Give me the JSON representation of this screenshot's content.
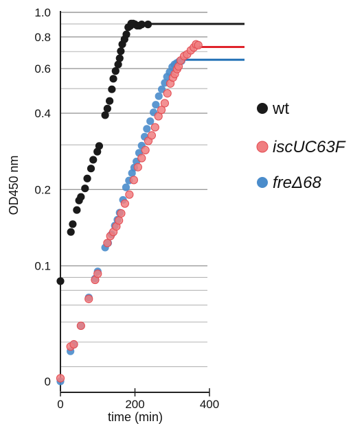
{
  "chart_data": {
    "type": "scatter",
    "title": "",
    "xlabel": "time (min)",
    "ylabel": "OD450 nm",
    "scale": "log",
    "xlim": [
      0,
      400
    ],
    "x_ticks": [
      "0",
      "200",
      "400"
    ],
    "y_ticks": [
      "0",
      "0.1",
      "0.2",
      "0.4",
      "0.6",
      "0.8",
      "1.0"
    ],
    "y_tick_values": [
      0.035,
      0.1,
      0.2,
      0.4,
      0.6,
      0.8,
      1.0
    ],
    "grid_y_values": [
      0.1,
      0.2,
      0.3,
      0.4,
      0.5,
      0.6,
      0.7,
      0.8,
      0.9,
      1.0,
      0.04,
      0.05,
      0.06,
      0.07,
      0.08,
      0.09
    ],
    "legend_position": "right",
    "series": [
      {
        "name": "wt",
        "color": "#1a1a1a",
        "plateau": 0.9,
        "plateau_from": 230,
        "points": [
          [
            0,
            0.087
          ],
          [
            28,
            0.136
          ],
          [
            33,
            0.146
          ],
          [
            44,
            0.166
          ],
          [
            50,
            0.181
          ],
          [
            55,
            0.187
          ],
          [
            66,
            0.202
          ],
          [
            72,
            0.221
          ],
          [
            82,
            0.242
          ],
          [
            88,
            0.262
          ],
          [
            99,
            0.282
          ],
          [
            104,
            0.297
          ],
          [
            120,
            0.393
          ],
          [
            126,
            0.417
          ],
          [
            132,
            0.447
          ],
          [
            138,
            0.497
          ],
          [
            142,
            0.547
          ],
          [
            148,
            0.587
          ],
          [
            155,
            0.623
          ],
          [
            159,
            0.659
          ],
          [
            162,
            0.703
          ],
          [
            166,
            0.748
          ],
          [
            172,
            0.783
          ],
          [
            177,
            0.819
          ],
          [
            182,
            0.873
          ],
          [
            187,
            0.883
          ],
          [
            190,
            0.903
          ],
          [
            195,
            0.903
          ],
          [
            200,
            0.897
          ],
          [
            206,
            0.886
          ],
          [
            212,
            0.886
          ],
          [
            218,
            0.896
          ],
          [
            235,
            0.896
          ]
        ]
      },
      {
        "name": "iscUC63F",
        "color": "#f07e80",
        "plateau": 0.73,
        "plateau_from": 365,
        "points": [
          [
            0,
            0.036
          ],
          [
            27,
            0.048
          ],
          [
            36,
            0.049
          ],
          [
            55,
            0.058
          ],
          [
            76,
            0.074
          ],
          [
            93,
            0.088
          ],
          [
            100,
            0.093
          ],
          [
            126,
            0.123
          ],
          [
            134,
            0.131
          ],
          [
            142,
            0.136
          ],
          [
            150,
            0.143
          ],
          [
            157,
            0.151
          ],
          [
            163,
            0.161
          ],
          [
            173,
            0.176
          ],
          [
            185,
            0.191
          ],
          [
            197,
            0.218
          ],
          [
            208,
            0.245
          ],
          [
            218,
            0.266
          ],
          [
            228,
            0.286
          ],
          [
            236,
            0.311
          ],
          [
            245,
            0.327
          ],
          [
            254,
            0.352
          ],
          [
            263,
            0.389
          ],
          [
            271,
            0.412
          ],
          [
            280,
            0.438
          ],
          [
            287,
            0.479
          ],
          [
            295,
            0.524
          ],
          [
            302,
            0.553
          ],
          [
            307,
            0.571
          ],
          [
            313,
            0.597
          ],
          [
            317,
            0.612
          ],
          [
            323,
            0.646
          ],
          [
            332,
            0.672
          ],
          [
            340,
            0.683
          ],
          [
            350,
            0.708
          ],
          [
            358,
            0.727
          ],
          [
            364,
            0.748
          ],
          [
            370,
            0.742
          ]
        ]
      },
      {
        "name": "freΔ68",
        "color": "#4a8ccb",
        "plateau": 0.65,
        "plateau_from": 320,
        "points": [
          [
            0,
            0.035
          ],
          [
            27,
            0.046
          ],
          [
            36,
            0.049
          ],
          [
            55,
            0.058
          ],
          [
            76,
            0.075
          ],
          [
            93,
            0.089
          ],
          [
            100,
            0.095
          ],
          [
            120,
            0.118
          ],
          [
            128,
            0.123
          ],
          [
            137,
            0.133
          ],
          [
            146,
            0.144
          ],
          [
            153,
            0.152
          ],
          [
            159,
            0.162
          ],
          [
            168,
            0.182
          ],
          [
            176,
            0.204
          ],
          [
            184,
            0.217
          ],
          [
            192,
            0.232
          ],
          [
            198,
            0.244
          ],
          [
            204,
            0.258
          ],
          [
            211,
            0.279
          ],
          [
            218,
            0.298
          ],
          [
            226,
            0.323
          ],
          [
            232,
            0.347
          ],
          [
            241,
            0.372
          ],
          [
            250,
            0.403
          ],
          [
            256,
            0.432
          ],
          [
            264,
            0.467
          ],
          [
            272,
            0.497
          ],
          [
            280,
            0.527
          ],
          [
            286,
            0.557
          ],
          [
            293,
            0.581
          ],
          [
            300,
            0.609
          ],
          [
            306,
            0.623
          ],
          [
            312,
            0.631
          ],
          [
            318,
            0.639
          ],
          [
            325,
            0.643
          ]
        ]
      }
    ]
  }
}
